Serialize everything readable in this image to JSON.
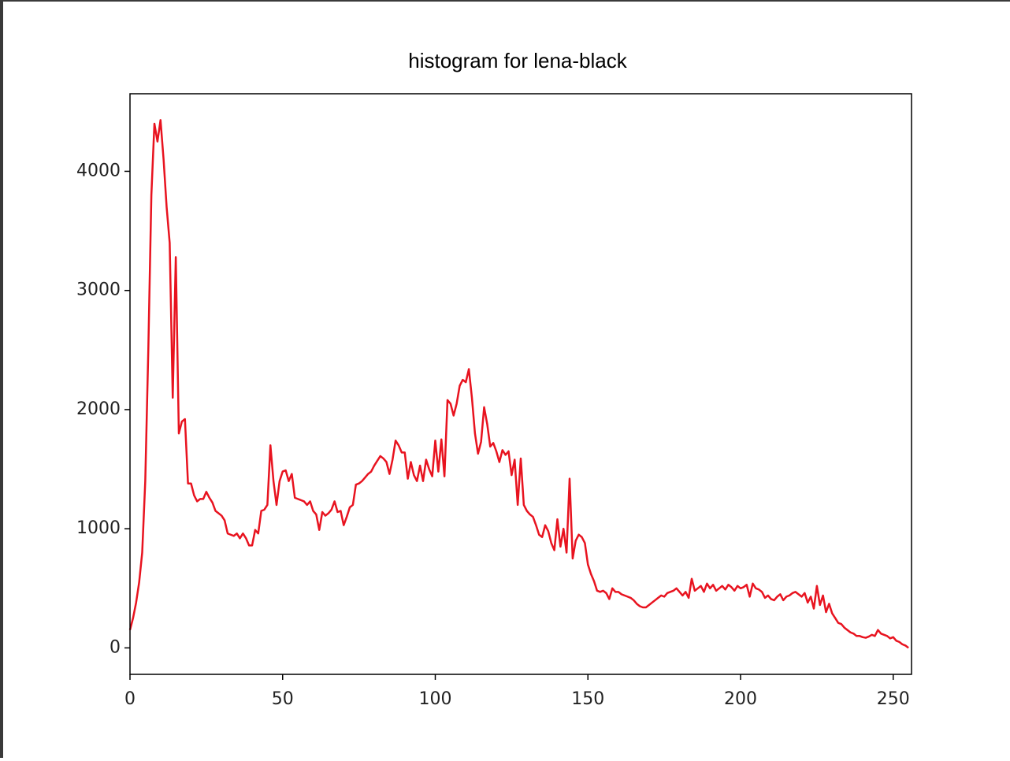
{
  "chart_data": {
    "type": "line",
    "title": "histogram for lena-black",
    "x": [
      0,
      1,
      2,
      3,
      4,
      5,
      6,
      7,
      8,
      9,
      10,
      11,
      12,
      13,
      14,
      15,
      16,
      17,
      18,
      19,
      20,
      21,
      22,
      23,
      24,
      25,
      26,
      27,
      28,
      29,
      30,
      31,
      32,
      33,
      34,
      35,
      36,
      37,
      38,
      39,
      40,
      41,
      42,
      43,
      44,
      45,
      46,
      47,
      48,
      49,
      50,
      51,
      52,
      53,
      54,
      55,
      56,
      57,
      58,
      59,
      60,
      61,
      62,
      63,
      64,
      65,
      66,
      67,
      68,
      69,
      70,
      71,
      72,
      73,
      74,
      75,
      76,
      77,
      78,
      79,
      80,
      81,
      82,
      83,
      84,
      85,
      86,
      87,
      88,
      89,
      90,
      91,
      92,
      93,
      94,
      95,
      96,
      97,
      98,
      99,
      100,
      101,
      102,
      103,
      104,
      105,
      106,
      107,
      108,
      109,
      110,
      111,
      112,
      113,
      114,
      115,
      116,
      117,
      118,
      119,
      120,
      121,
      122,
      123,
      124,
      125,
      126,
      127,
      128,
      129,
      130,
      131,
      132,
      133,
      134,
      135,
      136,
      137,
      138,
      139,
      140,
      141,
      142,
      143,
      144,
      145,
      146,
      147,
      148,
      149,
      150,
      151,
      152,
      153,
      154,
      155,
      156,
      157,
      158,
      159,
      160,
      161,
      162,
      163,
      164,
      165,
      166,
      167,
      168,
      169,
      170,
      171,
      172,
      173,
      174,
      175,
      176,
      177,
      178,
      179,
      180,
      181,
      182,
      183,
      184,
      185,
      186,
      187,
      188,
      189,
      190,
      191,
      192,
      193,
      194,
      195,
      196,
      197,
      198,
      199,
      200,
      201,
      202,
      203,
      204,
      205,
      206,
      207,
      208,
      209,
      210,
      211,
      212,
      213,
      214,
      215,
      216,
      217,
      218,
      219,
      220,
      221,
      222,
      223,
      224,
      225,
      226,
      227,
      228,
      229,
      230,
      231,
      232,
      233,
      234,
      235,
      236,
      237,
      238,
      239,
      240,
      241,
      242,
      243,
      244,
      245,
      246,
      247,
      248,
      249,
      250,
      251,
      252,
      253,
      254,
      255
    ],
    "values": [
      150,
      250,
      380,
      550,
      800,
      1400,
      2500,
      3800,
      4400,
      4250,
      4430,
      4100,
      3700,
      3400,
      2100,
      3280,
      1800,
      1900,
      1920,
      1380,
      1380,
      1280,
      1230,
      1250,
      1250,
      1310,
      1260,
      1220,
      1150,
      1130,
      1110,
      1070,
      960,
      950,
      940,
      960,
      920,
      960,
      920,
      860,
      860,
      990,
      960,
      1150,
      1160,
      1200,
      1700,
      1400,
      1200,
      1400,
      1480,
      1490,
      1400,
      1460,
      1260,
      1250,
      1240,
      1230,
      1200,
      1230,
      1150,
      1120,
      990,
      1140,
      1110,
      1130,
      1160,
      1230,
      1140,
      1150,
      1030,
      1100,
      1180,
      1200,
      1370,
      1380,
      1400,
      1430,
      1460,
      1480,
      1530,
      1570,
      1610,
      1590,
      1560,
      1460,
      1580,
      1740,
      1700,
      1640,
      1640,
      1420,
      1560,
      1450,
      1400,
      1530,
      1400,
      1580,
      1500,
      1440,
      1740,
      1480,
      1750,
      1440,
      2080,
      2050,
      1950,
      2050,
      2200,
      2250,
      2230,
      2340,
      2100,
      1800,
      1630,
      1730,
      2020,
      1880,
      1690,
      1720,
      1650,
      1560,
      1660,
      1620,
      1650,
      1450,
      1580,
      1200,
      1590,
      1200,
      1150,
      1120,
      1100,
      1030,
      950,
      930,
      1030,
      980,
      880,
      820,
      1080,
      850,
      1000,
      800,
      1420,
      750,
      900,
      950,
      930,
      880,
      700,
      620,
      560,
      480,
      470,
      480,
      460,
      410,
      500,
      470,
      470,
      450,
      440,
      430,
      420,
      400,
      370,
      350,
      340,
      340,
      360,
      380,
      400,
      420,
      440,
      430,
      460,
      470,
      480,
      500,
      470,
      440,
      470,
      420,
      580,
      480,
      500,
      520,
      470,
      540,
      500,
      530,
      480,
      500,
      520,
      490,
      530,
      510,
      480,
      520,
      500,
      510,
      530,
      430,
      540,
      500,
      490,
      470,
      420,
      440,
      410,
      400,
      430,
      450,
      400,
      430,
      440,
      460,
      470,
      450,
      430,
      460,
      380,
      430,
      330,
      520,
      360,
      440,
      300,
      370,
      290,
      250,
      210,
      200,
      170,
      150,
      130,
      120,
      100,
      100,
      90,
      85,
      95,
      110,
      100,
      150,
      120,
      110,
      100,
      80,
      90,
      60,
      50,
      30,
      20,
      0
    ],
    "color": "#e8131f",
    "xlim": [
      0,
      256
    ],
    "ylim": [
      -222,
      4651
    ],
    "xticks": [
      0,
      50,
      100,
      150,
      200,
      250
    ],
    "yticks": [
      0,
      1000,
      2000,
      3000,
      4000
    ]
  }
}
